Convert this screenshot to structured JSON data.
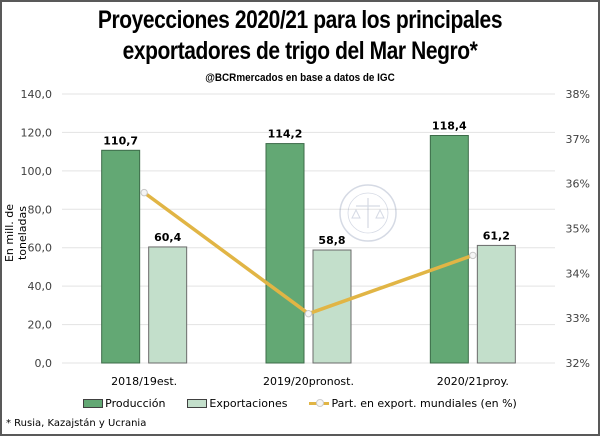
{
  "chart_data": {
    "type": "bar",
    "title": "Proyecciones 2020/21 para los principales exportadores de trigo del Mar Negro*",
    "title_line1": "Proyecciones 2020/21 para los principales",
    "title_line2": "exportadores de trigo del Mar Negro*",
    "subtitle": "@BCRmercados en base a datos de IGC",
    "categories": [
      "2018/19est.",
      "2019/20pronost.",
      "2020/21proy."
    ],
    "series": [
      {
        "name": "Producción",
        "type": "bar",
        "axis": "left",
        "color": "#63a874",
        "values": [
          110.7,
          114.2,
          118.4
        ],
        "labels": [
          "110,7",
          "114,2",
          "118,4"
        ]
      },
      {
        "name": "Exportaciones",
        "type": "bar",
        "axis": "left",
        "color": "#c3dfcb",
        "values": [
          60.4,
          58.8,
          61.2
        ],
        "labels": [
          "60,4",
          "58,8",
          "61,2"
        ]
      },
      {
        "name": "Part. en export. mundiales (en %)",
        "type": "line",
        "axis": "right",
        "color": "#e1b545",
        "values": [
          35.8,
          33.1,
          34.4
        ]
      }
    ],
    "ylabel": "En mill. de toneladas",
    "ylim": [
      0,
      140
    ],
    "yticks": [
      "0,0",
      "20,0",
      "40,0",
      "60,0",
      "80,0",
      "100,0",
      "120,0",
      "140,0"
    ],
    "y2lim": [
      32,
      38
    ],
    "y2ticks": [
      "32%",
      "33%",
      "34%",
      "35%",
      "36%",
      "37%",
      "38%"
    ],
    "grid": true,
    "legend_position": "bottom",
    "footnote": "* Rusia, Kazajstán y Ucrania"
  }
}
